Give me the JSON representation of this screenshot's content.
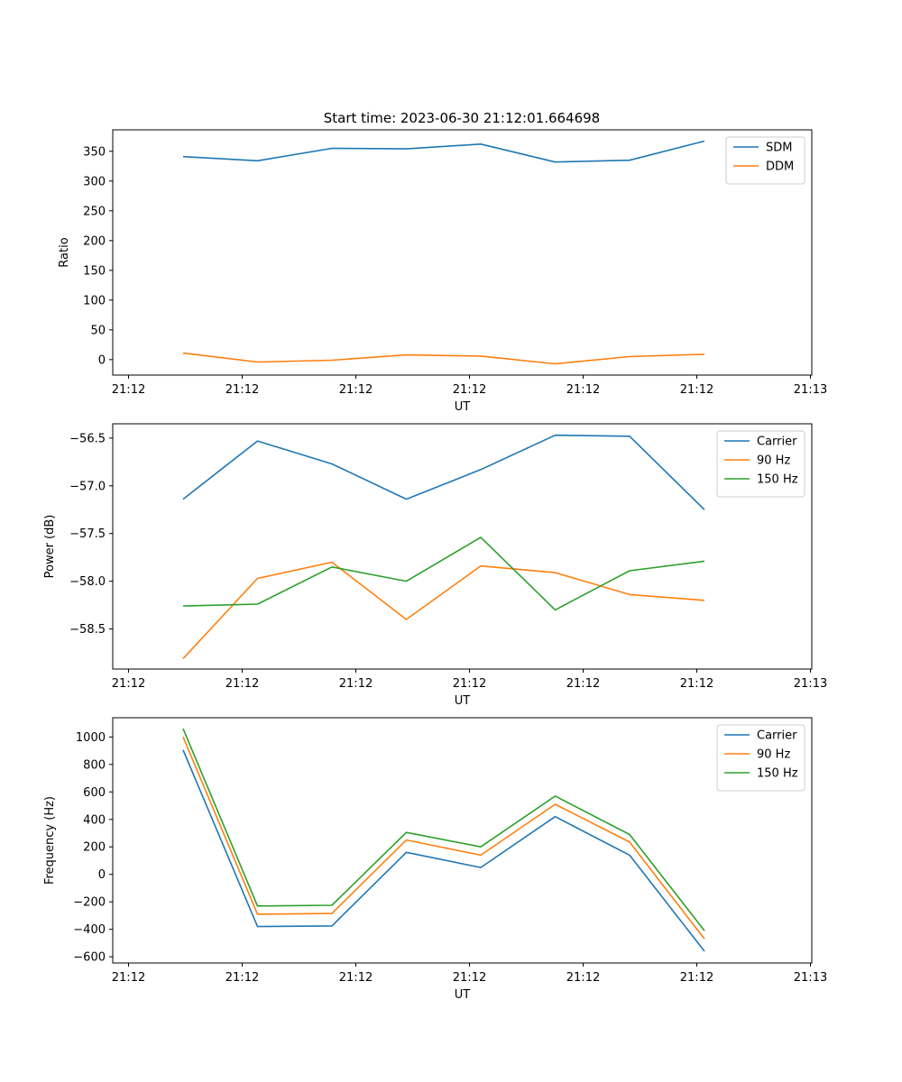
{
  "figure": {
    "title": "Start time: 2023-06-30 21:12:01.664698"
  },
  "chart_data": [
    {
      "type": "line",
      "title": "Start time: 2023-06-30 21:12:01.664698",
      "xlabel": "UT",
      "ylabel": "Ratio",
      "x_tick_labels": [
        "21:12",
        "21:12",
        "21:12",
        "21:12",
        "21:12",
        "21:12",
        "21:13"
      ],
      "ylim": [
        -26,
        386
      ],
      "yticks": [
        0,
        50,
        100,
        150,
        200,
        250,
        300,
        350
      ],
      "legend_position": "top-right",
      "grid": false,
      "series": [
        {
          "name": "SDM",
          "color": "#1f77b4",
          "values": [
            341,
            334,
            355,
            354,
            362,
            332,
            335,
            367
          ]
        },
        {
          "name": "DDM",
          "color": "#ff7f0e",
          "values": [
            11,
            -4,
            -1,
            8,
            6,
            -7,
            5,
            9
          ]
        }
      ]
    },
    {
      "type": "line",
      "title": "",
      "xlabel": "UT",
      "ylabel": "Power (dB)",
      "x_tick_labels": [
        "21:12",
        "21:12",
        "21:12",
        "21:12",
        "21:12",
        "21:12",
        "21:13"
      ],
      "ylim": [
        -58.92,
        -56.35
      ],
      "yticks": [
        -58.5,
        -58.0,
        -57.5,
        -57.0,
        -56.5
      ],
      "legend_position": "top-right",
      "grid": false,
      "series": [
        {
          "name": "Carrier",
          "color": "#1f77b4",
          "values": [
            -57.14,
            -56.53,
            -56.77,
            -57.14,
            -56.83,
            -56.47,
            -56.48,
            -57.25
          ]
        },
        {
          "name": "90 Hz",
          "color": "#ff7f0e",
          "values": [
            -58.81,
            -57.97,
            -57.8,
            -58.4,
            -57.84,
            -57.91,
            -58.14,
            -58.2
          ]
        },
        {
          "name": "150 Hz",
          "color": "#2ca02c",
          "values": [
            -58.26,
            -58.24,
            -57.85,
            -58.0,
            -57.54,
            -58.3,
            -57.89,
            -57.79
          ]
        }
      ]
    },
    {
      "type": "line",
      "title": "",
      "xlabel": "UT",
      "ylabel": "Frequency (Hz)",
      "x_tick_labels": [
        "21:12",
        "21:12",
        "21:12",
        "21:12",
        "21:12",
        "21:12",
        "21:13"
      ],
      "ylim": [
        -645,
        1140
      ],
      "yticks": [
        -600,
        -400,
        -200,
        0,
        200,
        400,
        600,
        800,
        1000
      ],
      "legend_position": "top-right",
      "grid": false,
      "series": [
        {
          "name": "Carrier",
          "color": "#1f77b4",
          "values": [
            905,
            -380,
            -375,
            160,
            50,
            420,
            140,
            -560
          ]
        },
        {
          "name": "90 Hz",
          "color": "#ff7f0e",
          "values": [
            1000,
            -290,
            -285,
            250,
            140,
            510,
            235,
            -470
          ]
        },
        {
          "name": "150 Hz",
          "color": "#2ca02c",
          "values": [
            1060,
            -230,
            -225,
            305,
            200,
            570,
            290,
            -410
          ]
        }
      ]
    }
  ]
}
